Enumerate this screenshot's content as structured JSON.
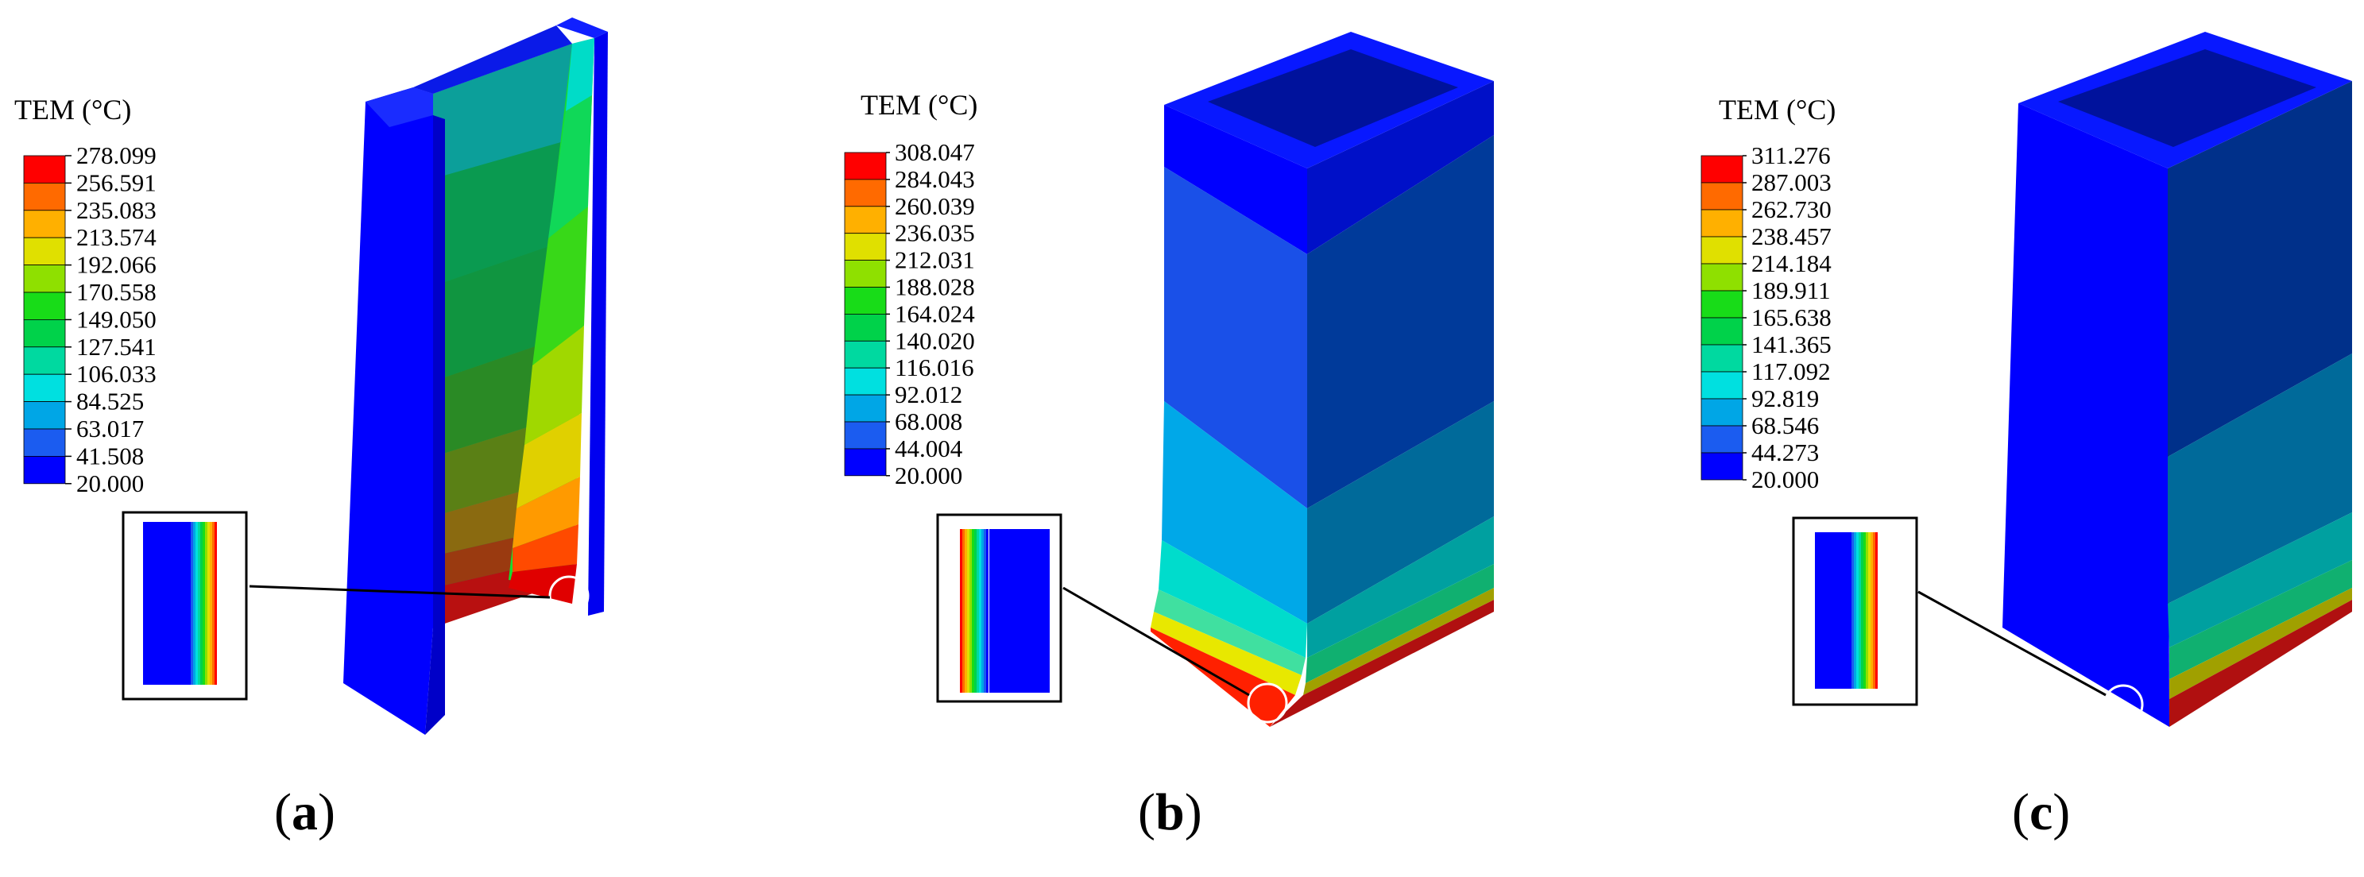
{
  "colormap": [
    "#0000FF",
    "#1B5CF0",
    "#00A6E6",
    "#00E0E0",
    "#00D9A0",
    "#00D24A",
    "#18DC18",
    "#8FE000",
    "#E0E000",
    "#FFB000",
    "#FF6A00",
    "#FF0000"
  ],
  "panels": [
    {
      "id": "a",
      "caption": "a",
      "legend": {
        "title": "TEM (°C)",
        "ticks": [
          "278.099",
          "256.591",
          "235.083",
          "213.574",
          "192.066",
          "170.558",
          "149.050",
          "127.541",
          "106.033",
          "84.525",
          "63.017",
          "41.508",
          "20.000"
        ]
      }
    },
    {
      "id": "b",
      "caption": "b",
      "legend": {
        "title": "TEM (°C)",
        "ticks": [
          "308.047",
          "284.043",
          "260.039",
          "236.035",
          "212.031",
          "188.028",
          "164.024",
          "140.020",
          "116.016",
          "92.012",
          "68.008",
          "44.004",
          "20.000"
        ]
      }
    },
    {
      "id": "c",
      "caption": "c",
      "legend": {
        "title": "TEM (°C)",
        "ticks": [
          "311.276",
          "287.003",
          "262.730",
          "238.457",
          "214.184",
          "189.911",
          "165.638",
          "141.365",
          "117.092",
          "92.819",
          "68.546",
          "44.273",
          "20.000"
        ]
      }
    }
  ]
}
